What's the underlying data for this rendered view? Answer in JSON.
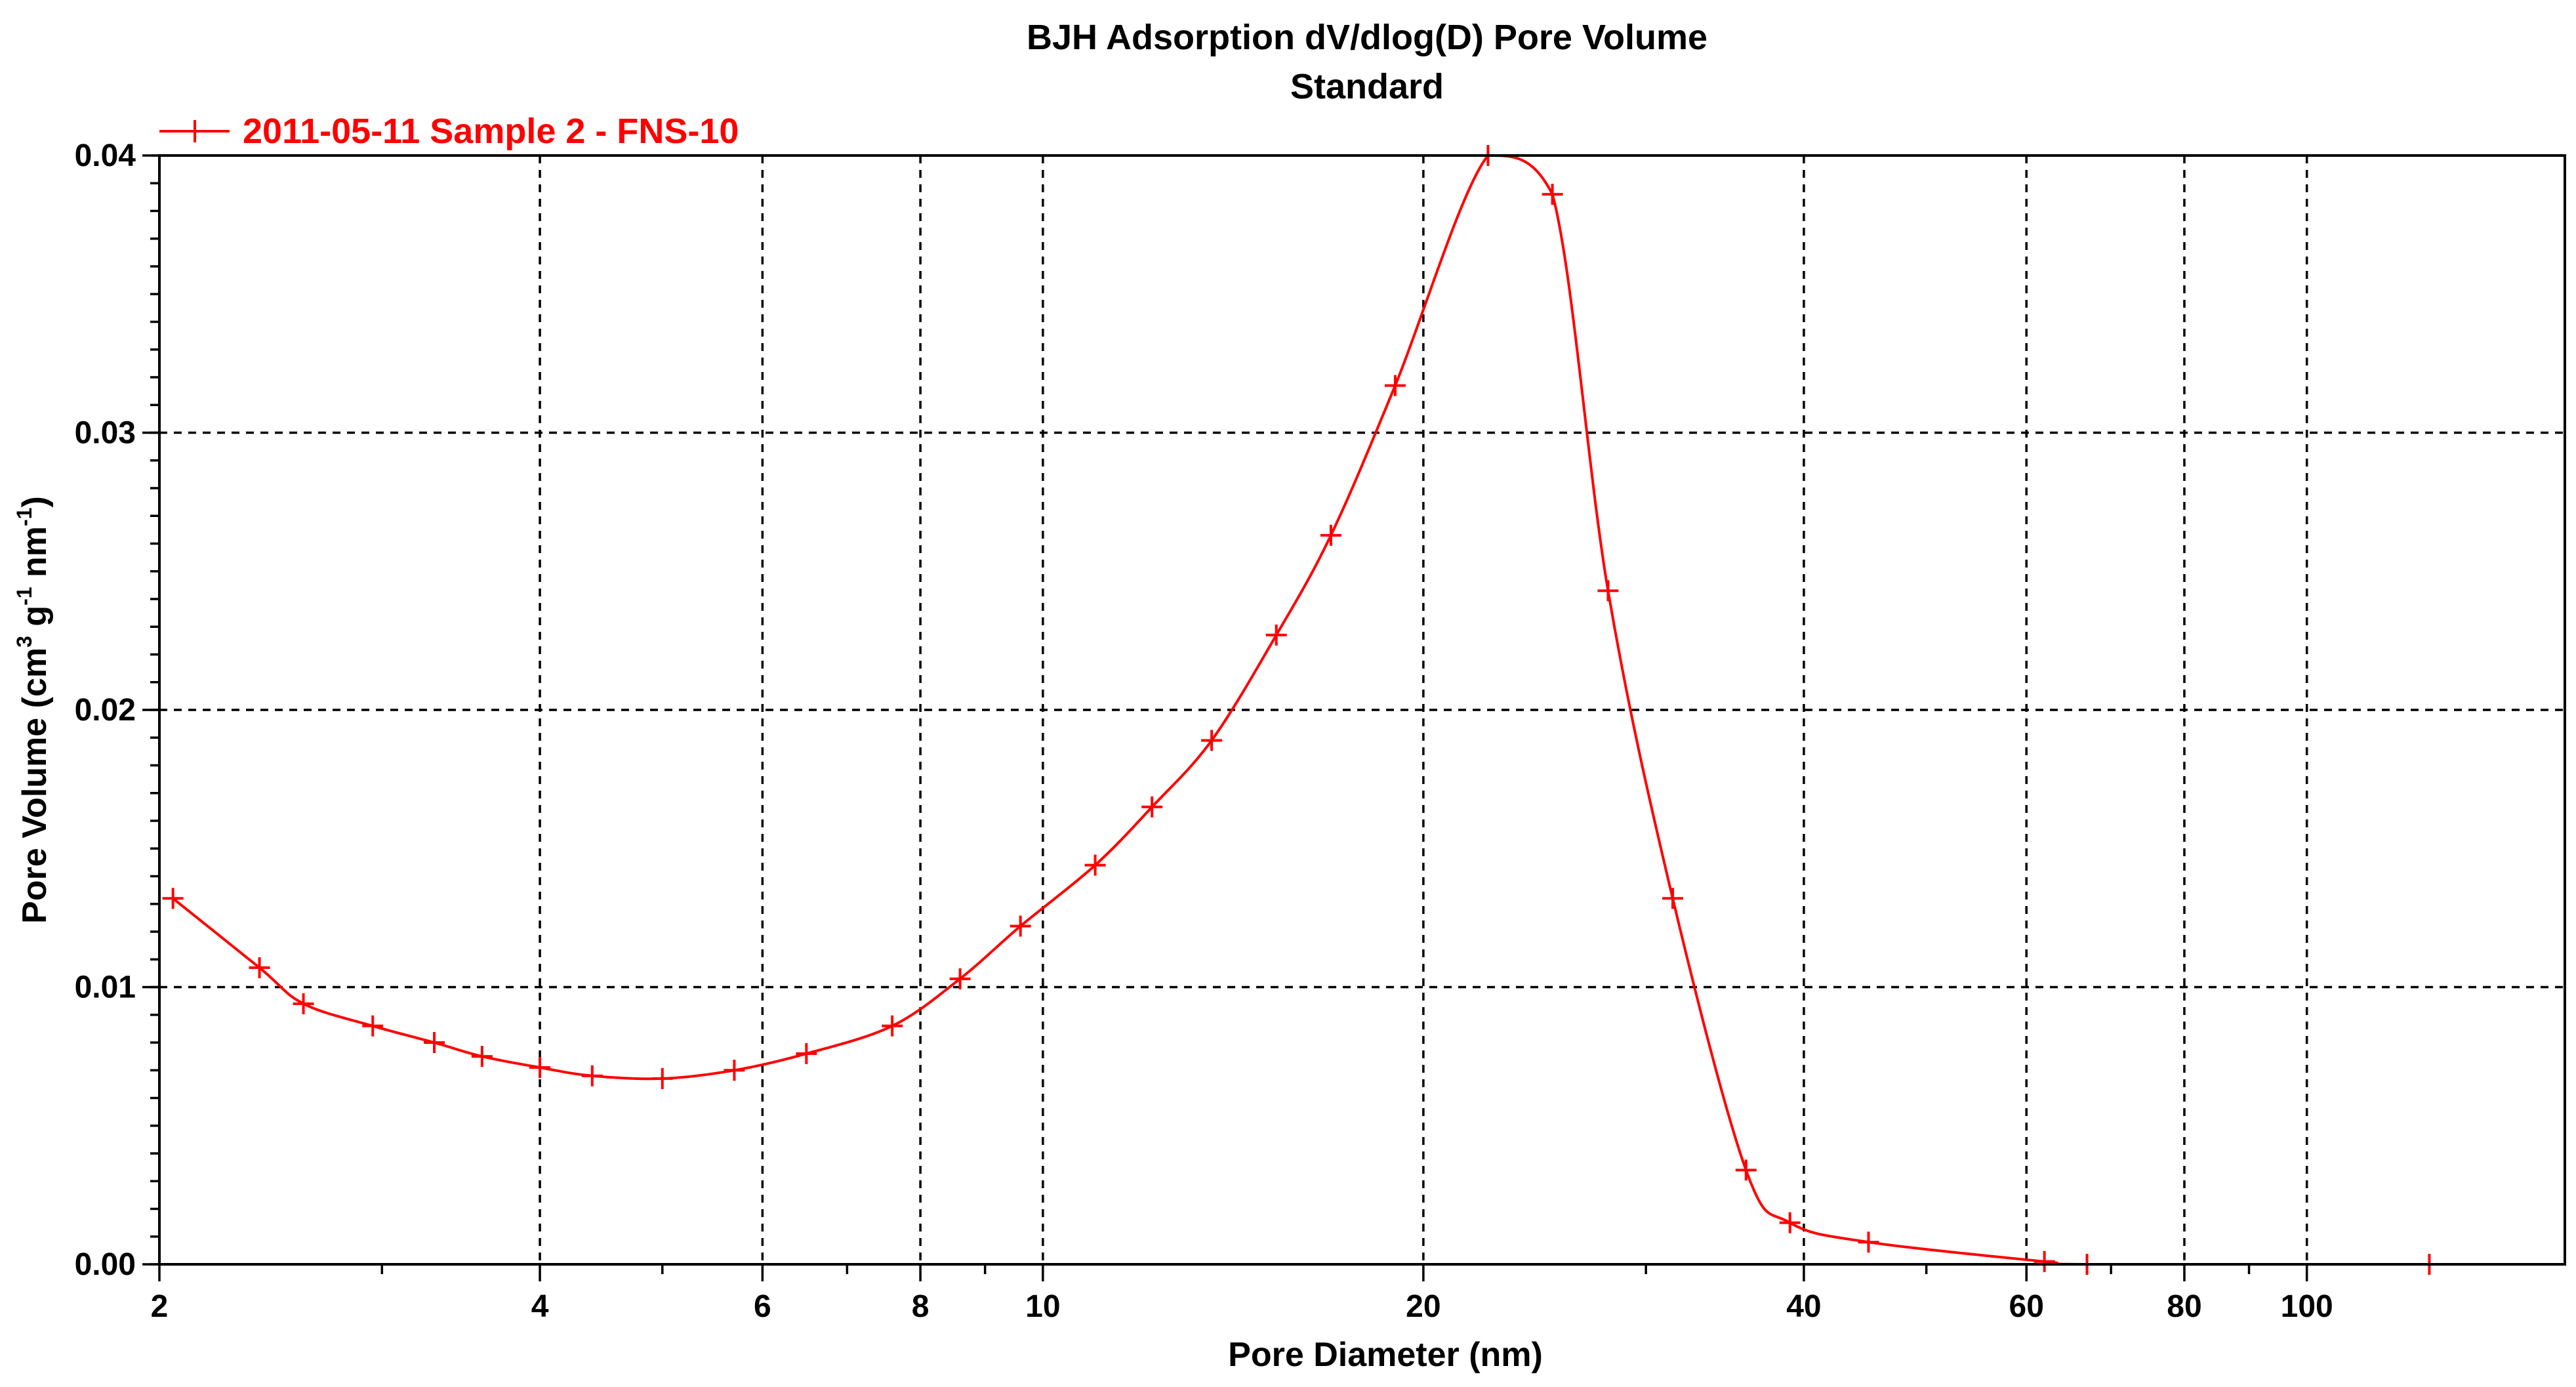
{
  "chart_data": {
    "type": "line",
    "title": "BJH Adsorption dV/dlog(D) Pore Volume",
    "subtitle": "Standard",
    "xlabel": "Pore Diameter (nm)",
    "ylabel": {
      "prefix": "Pore Volume (cm",
      "sup1": "3",
      "mid1": " g",
      "sup2": "-1",
      "mid2": " nm",
      "sup3": "-1",
      "suffix": ")"
    },
    "x_scale": "log",
    "xlim": [
      2,
      160
    ],
    "ylim": [
      0,
      0.04
    ],
    "x_ticks": [
      {
        "value": 2,
        "label": "2"
      },
      {
        "value": 4,
        "label": "4"
      },
      {
        "value": 6,
        "label": "6"
      },
      {
        "value": 8,
        "label": "8"
      },
      {
        "value": 10,
        "label": "10"
      },
      {
        "value": 20,
        "label": "20"
      },
      {
        "value": 40,
        "label": "40"
      },
      {
        "value": 60,
        "label": "60"
      },
      {
        "value": 80,
        "label": "80"
      },
      {
        "value": 100,
        "label": "100"
      }
    ],
    "x_minor_ticks": [
      3,
      5,
      7,
      9,
      30,
      50,
      70,
      90
    ],
    "x_grid": [
      4,
      6,
      8,
      10,
      20,
      40,
      60,
      80,
      100
    ],
    "y_ticks": [
      {
        "value": 0,
        "label": "0.00"
      },
      {
        "value": 0.01,
        "label": "0.01"
      },
      {
        "value": 0.02,
        "label": "0.02"
      },
      {
        "value": 0.03,
        "label": "0.03"
      },
      {
        "value": 0.04,
        "label": "0.04"
      }
    ],
    "y_grid": [
      0.01,
      0.02,
      0.03
    ],
    "y_minor_step": 0.001,
    "grid": true,
    "legend_position": "top-left",
    "series": [
      {
        "name": "2011-05-11 Sample 2 - FNS-10",
        "color": "#ff0000",
        "marker": "plus",
        "points": [
          {
            "x": 2.05,
            "y": 0.0132
          },
          {
            "x": 2.4,
            "y": 0.0107
          },
          {
            "x": 2.6,
            "y": 0.0094
          },
          {
            "x": 2.95,
            "y": 0.0086
          },
          {
            "x": 3.3,
            "y": 0.008
          },
          {
            "x": 3.6,
            "y": 0.0075
          },
          {
            "x": 4.0,
            "y": 0.0071
          },
          {
            "x": 4.4,
            "y": 0.0068
          },
          {
            "x": 5.0,
            "y": 0.0067
          },
          {
            "x": 5.7,
            "y": 0.007
          },
          {
            "x": 6.5,
            "y": 0.0076
          },
          {
            "x": 7.6,
            "y": 0.0086
          },
          {
            "x": 8.6,
            "y": 0.0103
          },
          {
            "x": 9.6,
            "y": 0.0122
          },
          {
            "x": 11.0,
            "y": 0.0144
          },
          {
            "x": 12.2,
            "y": 0.0165
          },
          {
            "x": 13.6,
            "y": 0.0189
          },
          {
            "x": 15.3,
            "y": 0.0227
          },
          {
            "x": 16.9,
            "y": 0.0263
          },
          {
            "x": 19.0,
            "y": 0.0317
          },
          {
            "x": 22.5,
            "y": 0.04
          },
          {
            "x": 25.3,
            "y": 0.0386
          },
          {
            "x": 28.0,
            "y": 0.0243
          },
          {
            "x": 31.5,
            "y": 0.0132
          },
          {
            "x": 36.0,
            "y": 0.0034
          },
          {
            "x": 39.0,
            "y": 0.0015
          },
          {
            "x": 45.0,
            "y": 0.0008
          },
          {
            "x": 62.0,
            "y": 0.0001
          },
          {
            "x": 67.0,
            "y": 0.0
          },
          {
            "x": 125.0,
            "y": 0.0
          }
        ]
      }
    ]
  }
}
